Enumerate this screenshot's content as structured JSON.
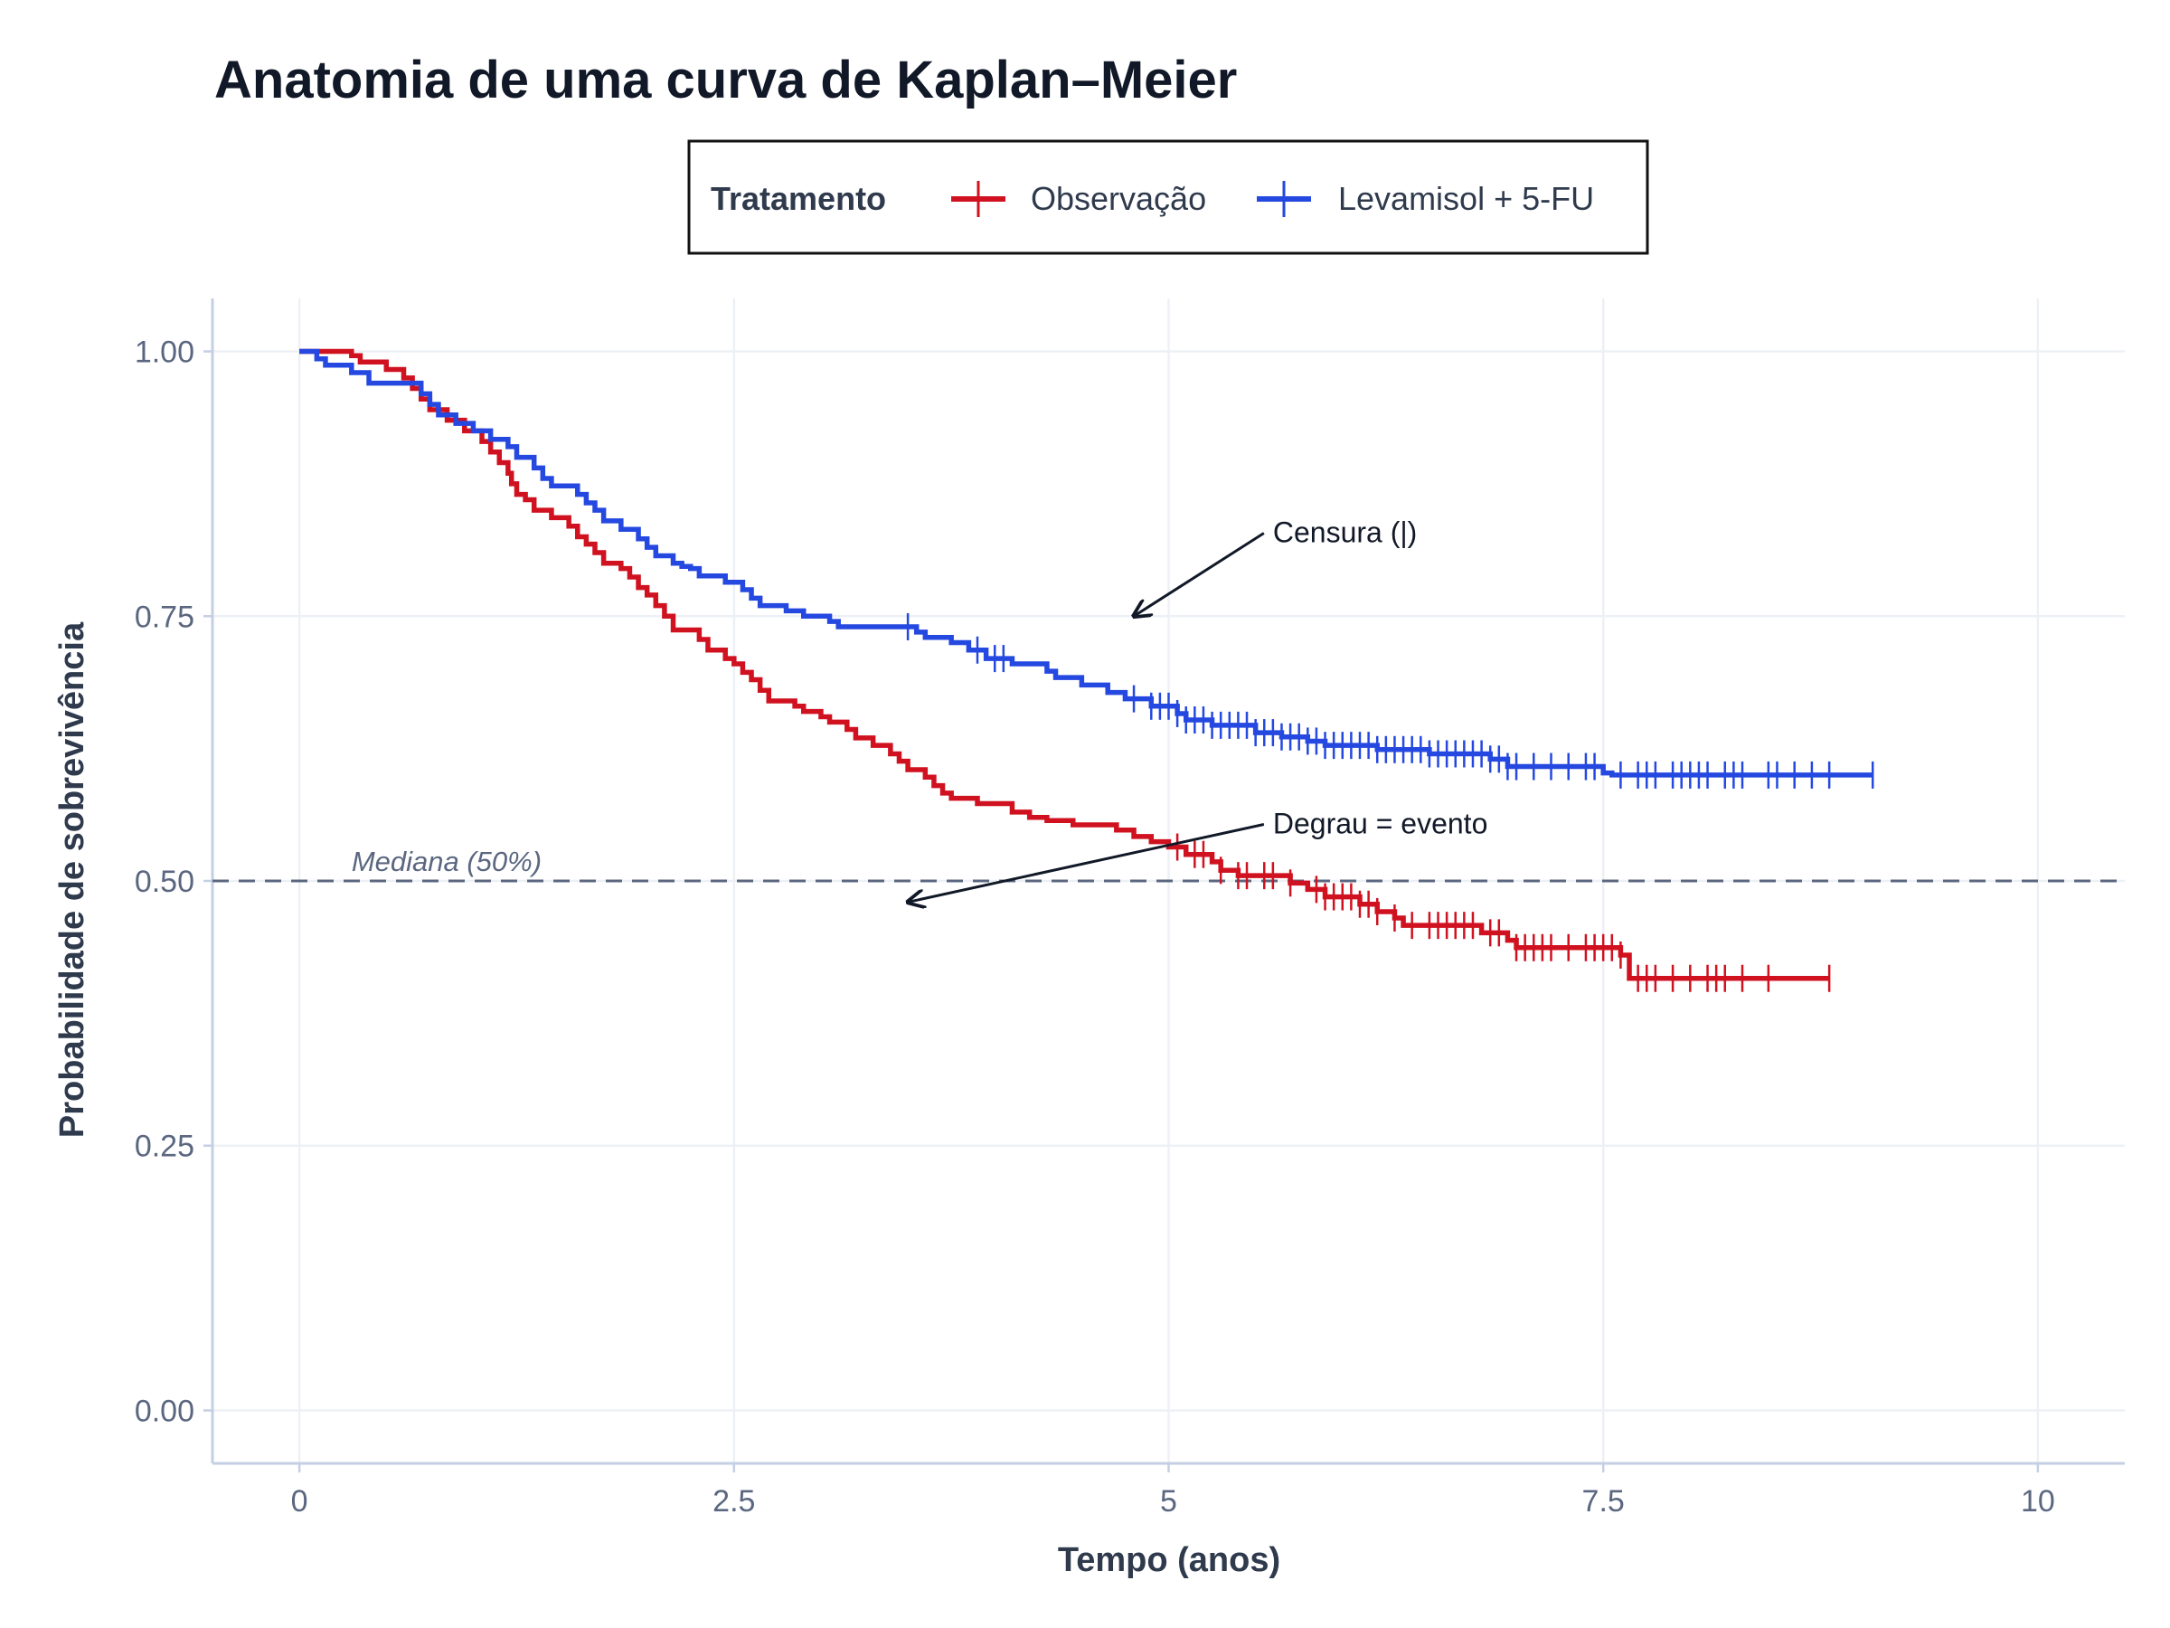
{
  "chart_data": {
    "type": "line",
    "subtype": "kaplan-meier-step",
    "title": "Anatomia de uma curva de Kaplan–Meier",
    "xlabel": "Tempo (anos)",
    "ylabel": "Probabilidade de sobrevivência",
    "xlim": [
      -0.5,
      10.5
    ],
    "ylim": [
      -0.05,
      1.05
    ],
    "x_ticks": [
      0,
      2.5,
      5,
      7.5,
      10
    ],
    "x_tick_labels": [
      "0",
      "2.5",
      "5",
      "7.5",
      "10"
    ],
    "y_ticks": [
      0,
      0.25,
      0.5,
      0.75,
      1.0
    ],
    "y_tick_labels": [
      "0.00",
      "0.25",
      "0.50",
      "0.75",
      "1.00"
    ],
    "grid": true,
    "legend": {
      "title": "Tratamento",
      "position": "top",
      "entries": [
        "Observação",
        "Levamisol + 5-FU"
      ]
    },
    "colors": {
      "Observação": "#d0111f",
      "Levamisol + 5-FU": "#2448e0",
      "median": "#5b6780",
      "annotation": "#111827"
    },
    "reference_line": {
      "y": 0.5,
      "label": "Mediana (50%)"
    },
    "annotations": [
      {
        "label": "Censura (|)",
        "text_at": [
          5.6,
          0.825
        ],
        "arrow_to": [
          4.8,
          0.75
        ]
      },
      {
        "label": "Degrau = evento",
        "text_at": [
          5.6,
          0.55
        ],
        "arrow_to": [
          3.5,
          0.48
        ]
      }
    ],
    "series": [
      {
        "name": "Observação",
        "steps": [
          [
            0,
            1.0
          ],
          [
            0.3,
            0.996
          ],
          [
            0.35,
            0.99
          ],
          [
            0.5,
            0.983
          ],
          [
            0.6,
            0.975
          ],
          [
            0.65,
            0.965
          ],
          [
            0.7,
            0.955
          ],
          [
            0.75,
            0.945
          ],
          [
            0.85,
            0.935
          ],
          [
            0.95,
            0.925
          ],
          [
            1.05,
            0.915
          ],
          [
            1.1,
            0.905
          ],
          [
            1.15,
            0.895
          ],
          [
            1.2,
            0.885
          ],
          [
            1.22,
            0.875
          ],
          [
            1.25,
            0.865
          ],
          [
            1.3,
            0.86
          ],
          [
            1.35,
            0.85
          ],
          [
            1.45,
            0.843
          ],
          [
            1.55,
            0.835
          ],
          [
            1.6,
            0.825
          ],
          [
            1.65,
            0.818
          ],
          [
            1.7,
            0.81
          ],
          [
            1.75,
            0.8
          ],
          [
            1.85,
            0.795
          ],
          [
            1.9,
            0.787
          ],
          [
            1.95,
            0.777
          ],
          [
            2.0,
            0.77
          ],
          [
            2.05,
            0.76
          ],
          [
            2.1,
            0.75
          ],
          [
            2.15,
            0.737
          ],
          [
            2.3,
            0.728
          ],
          [
            2.35,
            0.718
          ],
          [
            2.45,
            0.71
          ],
          [
            2.5,
            0.705
          ],
          [
            2.55,
            0.697
          ],
          [
            2.6,
            0.69
          ],
          [
            2.65,
            0.68
          ],
          [
            2.7,
            0.67
          ],
          [
            2.85,
            0.665
          ],
          [
            2.9,
            0.66
          ],
          [
            3.0,
            0.655
          ],
          [
            3.05,
            0.65
          ],
          [
            3.15,
            0.643
          ],
          [
            3.2,
            0.635
          ],
          [
            3.3,
            0.628
          ],
          [
            3.4,
            0.62
          ],
          [
            3.45,
            0.613
          ],
          [
            3.5,
            0.605
          ],
          [
            3.6,
            0.598
          ],
          [
            3.65,
            0.59
          ],
          [
            3.7,
            0.583
          ],
          [
            3.75,
            0.578
          ],
          [
            3.9,
            0.573
          ],
          [
            4.1,
            0.565
          ],
          [
            4.2,
            0.56
          ],
          [
            4.3,
            0.557
          ],
          [
            4.45,
            0.553
          ],
          [
            4.7,
            0.548
          ],
          [
            4.8,
            0.542
          ],
          [
            4.9,
            0.537
          ],
          [
            5.0,
            0.532
          ],
          [
            5.1,
            0.525
          ],
          [
            5.25,
            0.518
          ],
          [
            5.3,
            0.51
          ],
          [
            5.4,
            0.505
          ],
          [
            5.7,
            0.498
          ],
          [
            5.8,
            0.492
          ],
          [
            5.9,
            0.485
          ],
          [
            6.1,
            0.478
          ],
          [
            6.2,
            0.471
          ],
          [
            6.3,
            0.465
          ],
          [
            6.35,
            0.458
          ],
          [
            6.8,
            0.451
          ],
          [
            6.95,
            0.444
          ],
          [
            7.0,
            0.437
          ],
          [
            7.6,
            0.43
          ],
          [
            7.65,
            0.408
          ],
          [
            8.8,
            0.408
          ]
        ],
        "censor_times": [
          5.05,
          5.15,
          5.2,
          5.3,
          5.4,
          5.45,
          5.55,
          5.6,
          5.7,
          5.85,
          5.9,
          5.95,
          6.0,
          6.05,
          6.1,
          6.15,
          6.2,
          6.3,
          6.4,
          6.5,
          6.55,
          6.6,
          6.65,
          6.7,
          6.75,
          6.85,
          6.9,
          7.0,
          7.05,
          7.1,
          7.15,
          7.2,
          7.3,
          7.4,
          7.45,
          7.5,
          7.55,
          7.6,
          7.7,
          7.75,
          7.8,
          7.9,
          8.0,
          8.1,
          8.15,
          8.2,
          8.3,
          8.45,
          8.8
        ]
      },
      {
        "name": "Levamisol + 5-FU",
        "steps": [
          [
            0,
            1.0
          ],
          [
            0.1,
            0.993
          ],
          [
            0.15,
            0.987
          ],
          [
            0.3,
            0.98
          ],
          [
            0.4,
            0.975
          ],
          [
            0.4,
            0.97
          ],
          [
            0.7,
            0.96
          ],
          [
            0.75,
            0.95
          ],
          [
            0.8,
            0.94
          ],
          [
            0.9,
            0.932
          ],
          [
            1.0,
            0.925
          ],
          [
            1.1,
            0.917
          ],
          [
            1.2,
            0.91
          ],
          [
            1.25,
            0.9
          ],
          [
            1.35,
            0.89
          ],
          [
            1.4,
            0.88
          ],
          [
            1.45,
            0.873
          ],
          [
            1.6,
            0.865
          ],
          [
            1.65,
            0.857
          ],
          [
            1.7,
            0.85
          ],
          [
            1.75,
            0.84
          ],
          [
            1.85,
            0.832
          ],
          [
            1.95,
            0.823
          ],
          [
            2.0,
            0.815
          ],
          [
            2.05,
            0.807
          ],
          [
            2.15,
            0.8
          ],
          [
            2.2,
            0.797
          ],
          [
            2.25,
            0.795
          ],
          [
            2.3,
            0.788
          ],
          [
            2.45,
            0.782
          ],
          [
            2.55,
            0.775
          ],
          [
            2.6,
            0.767
          ],
          [
            2.65,
            0.76
          ],
          [
            2.8,
            0.755
          ],
          [
            2.9,
            0.75
          ],
          [
            3.05,
            0.745
          ],
          [
            3.1,
            0.74
          ],
          [
            3.55,
            0.735
          ],
          [
            3.6,
            0.73
          ],
          [
            3.75,
            0.725
          ],
          [
            3.85,
            0.718
          ],
          [
            3.95,
            0.71
          ],
          [
            4.1,
            0.705
          ],
          [
            4.3,
            0.698
          ],
          [
            4.35,
            0.692
          ],
          [
            4.5,
            0.685
          ],
          [
            4.65,
            0.678
          ],
          [
            4.75,
            0.672
          ],
          [
            4.9,
            0.665
          ],
          [
            5.05,
            0.658
          ],
          [
            5.1,
            0.652
          ],
          [
            5.25,
            0.647
          ],
          [
            5.5,
            0.64
          ],
          [
            5.65,
            0.636
          ],
          [
            5.8,
            0.632
          ],
          [
            5.9,
            0.628
          ],
          [
            6.2,
            0.624
          ],
          [
            6.5,
            0.62
          ],
          [
            6.85,
            0.615
          ],
          [
            6.95,
            0.608
          ],
          [
            7.5,
            0.602
          ],
          [
            7.55,
            0.6
          ],
          [
            9.05,
            0.6
          ]
        ],
        "censor_times": [
          3.5,
          3.9,
          4.0,
          4.05,
          4.8,
          4.9,
          4.95,
          5.0,
          5.05,
          5.1,
          5.15,
          5.2,
          5.25,
          5.3,
          5.35,
          5.4,
          5.45,
          5.5,
          5.55,
          5.6,
          5.65,
          5.7,
          5.75,
          5.8,
          5.85,
          5.9,
          5.95,
          6.0,
          6.05,
          6.1,
          6.15,
          6.2,
          6.25,
          6.3,
          6.35,
          6.4,
          6.45,
          6.5,
          6.55,
          6.6,
          6.65,
          6.7,
          6.75,
          6.8,
          6.85,
          6.9,
          6.95,
          7.0,
          7.1,
          7.2,
          7.3,
          7.4,
          7.45,
          7.6,
          7.7,
          7.75,
          7.8,
          7.9,
          7.95,
          8.0,
          8.05,
          8.1,
          8.2,
          8.25,
          8.3,
          8.45,
          8.5,
          8.6,
          8.7,
          8.8,
          9.05
        ]
      }
    ]
  }
}
